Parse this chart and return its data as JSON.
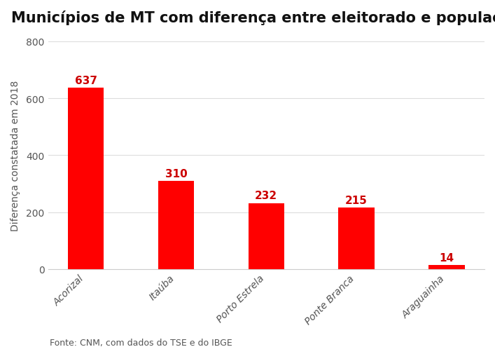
{
  "title": "Municípios de MT com diferença entre eleitorado e população",
  "categories": [
    "Acorizal",
    "Itaúba",
    "Porto Estrela",
    "Ponte Branca",
    "Araguainha"
  ],
  "values": [
    637,
    310,
    232,
    215,
    14
  ],
  "bar_color": "#ff0000",
  "value_label_color": "#cc0000",
  "ylabel": "Diferença constatada em 2018",
  "ylim": [
    0,
    800
  ],
  "yticks": [
    0,
    200,
    400,
    600,
    800
  ],
  "footnote": "Fonte: CNM, com dados do TSE e do IBGE",
  "background_color": "#ffffff",
  "title_fontsize": 15,
  "value_label_fontsize": 11,
  "ylabel_fontsize": 10,
  "tick_fontsize": 10,
  "footnote_fontsize": 9,
  "bar_width": 0.4
}
